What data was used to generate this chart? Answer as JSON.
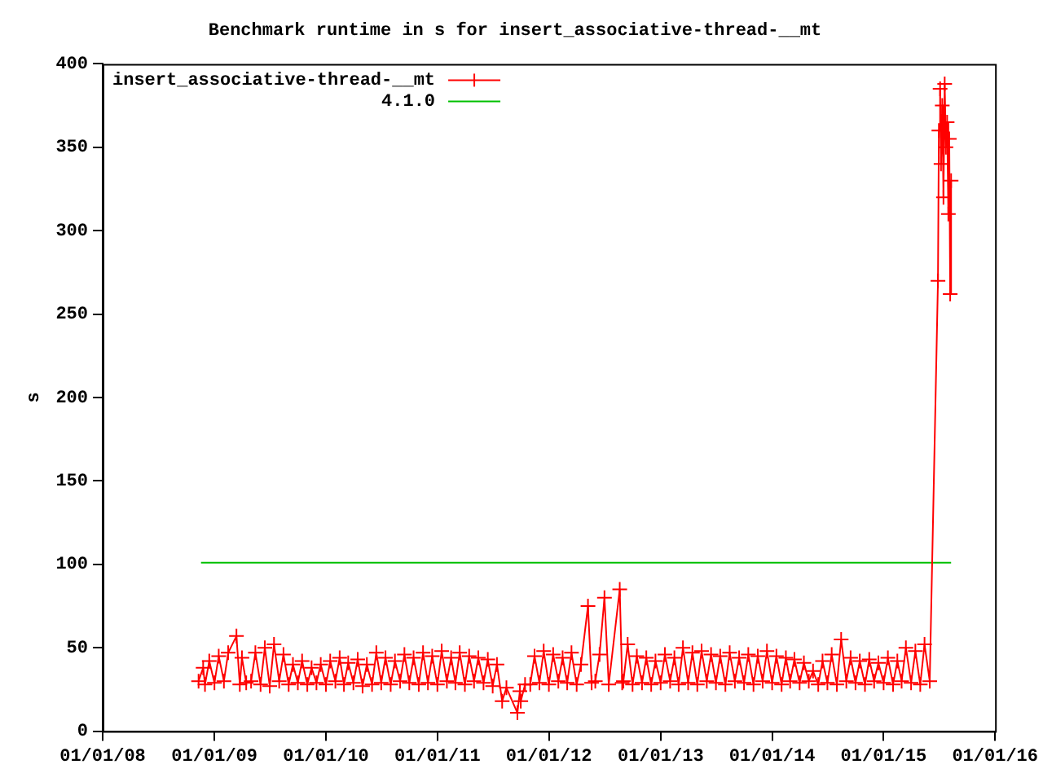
{
  "chart_data": {
    "type": "line",
    "title": "Benchmark runtime in s for insert_associative-thread-__mt",
    "ylabel": "s",
    "xlim": [
      "2008-01-01",
      "2016-01-01"
    ],
    "xticks": [
      {
        "value": "2008-01-01",
        "label": "01/01/08"
      },
      {
        "value": "2009-01-01",
        "label": "01/01/09"
      },
      {
        "value": "2010-01-01",
        "label": "01/01/10"
      },
      {
        "value": "2011-01-01",
        "label": "01/01/11"
      },
      {
        "value": "2012-01-01",
        "label": "01/01/12"
      },
      {
        "value": "2013-01-01",
        "label": "01/01/13"
      },
      {
        "value": "2014-01-01",
        "label": "01/01/14"
      },
      {
        "value": "2015-01-01",
        "label": "01/01/15"
      },
      {
        "value": "2016-01-01",
        "label": "01/01/16"
      }
    ],
    "ylim": [
      0,
      400
    ],
    "yticks": [
      0,
      50,
      100,
      150,
      200,
      250,
      300,
      350,
      400
    ],
    "grid": false,
    "legend": "top left",
    "series": [
      {
        "name": "insert_associative-thread-__mt",
        "color": "#ff0000",
        "marker": "cross",
        "line_style": "solid",
        "x": [
          "2008-11-10",
          "2008-11-25",
          "2008-12-01",
          "2008-12-15",
          "2009-01-01",
          "2009-01-15",
          "2009-02-01",
          "2009-02-15",
          "2009-03-14",
          "2009-03-25",
          "2009-04-01",
          "2009-04-15",
          "2009-05-01",
          "2009-05-15",
          "2009-06-01",
          "2009-06-15",
          "2009-07-01",
          "2009-07-15",
          "2009-08-01",
          "2009-08-15",
          "2009-09-01",
          "2009-09-15",
          "2009-10-01",
          "2009-10-15",
          "2009-11-01",
          "2009-11-15",
          "2009-12-01",
          "2009-12-15",
          "2010-01-01",
          "2010-01-15",
          "2010-02-01",
          "2010-02-15",
          "2010-03-01",
          "2010-03-15",
          "2010-04-01",
          "2010-04-15",
          "2010-05-01",
          "2010-05-15",
          "2010-06-01",
          "2010-06-15",
          "2010-07-01",
          "2010-07-15",
          "2010-08-01",
          "2010-08-15",
          "2010-09-01",
          "2010-09-15",
          "2010-10-01",
          "2010-10-15",
          "2010-11-01",
          "2010-11-15",
          "2010-12-01",
          "2010-12-15",
          "2011-01-01",
          "2011-01-15",
          "2011-02-01",
          "2011-02-15",
          "2011-03-01",
          "2011-03-15",
          "2011-04-01",
          "2011-04-15",
          "2011-05-01",
          "2011-05-15",
          "2011-06-01",
          "2011-06-15",
          "2011-07-01",
          "2011-07-15",
          "2011-08-01",
          "2011-08-15",
          "2011-09-20",
          "2011-09-28",
          "2011-10-01",
          "2011-10-15",
          "2011-11-01",
          "2011-11-15",
          "2011-12-01",
          "2011-12-15",
          "2012-01-01",
          "2012-01-15",
          "2012-02-01",
          "2012-02-15",
          "2012-03-01",
          "2012-03-15",
          "2012-04-01",
          "2012-04-15",
          "2012-05-08",
          "2012-05-20",
          "2012-06-01",
          "2012-06-15",
          "2012-07-01",
          "2012-07-15",
          "2012-08-20",
          "2012-08-28",
          "2012-09-01",
          "2012-09-15",
          "2012-10-01",
          "2012-10-15",
          "2012-11-01",
          "2012-11-15",
          "2012-12-01",
          "2012-12-15",
          "2013-01-01",
          "2013-01-15",
          "2013-02-01",
          "2013-02-15",
          "2013-03-01",
          "2013-03-15",
          "2013-04-01",
          "2013-04-15",
          "2013-05-01",
          "2013-05-15",
          "2013-06-01",
          "2013-06-15",
          "2013-07-01",
          "2013-07-15",
          "2013-08-01",
          "2013-08-15",
          "2013-09-01",
          "2013-09-15",
          "2013-10-01",
          "2013-10-15",
          "2013-11-01",
          "2013-11-15",
          "2013-12-01",
          "2013-12-15",
          "2014-01-01",
          "2014-01-15",
          "2014-02-01",
          "2014-02-15",
          "2014-03-01",
          "2014-03-15",
          "2014-04-01",
          "2014-04-15",
          "2014-05-01",
          "2014-05-15",
          "2014-06-01",
          "2014-06-15",
          "2014-07-01",
          "2014-07-15",
          "2014-08-01",
          "2014-08-15",
          "2014-09-01",
          "2014-09-15",
          "2014-10-01",
          "2014-10-15",
          "2014-11-01",
          "2014-11-15",
          "2014-12-01",
          "2014-12-15",
          "2015-01-01",
          "2015-01-15",
          "2015-02-01",
          "2015-02-15",
          "2015-03-01",
          "2015-03-15",
          "2015-04-01",
          "2015-04-15",
          "2015-05-01",
          "2015-05-15",
          "2015-06-01",
          "2015-06-28",
          "2015-07-01",
          "2015-07-05",
          "2015-07-08",
          "2015-07-12",
          "2015-07-16",
          "2015-07-20",
          "2015-07-24",
          "2015-07-28",
          "2015-08-01",
          "2015-08-04",
          "2015-08-07",
          "2015-08-10"
        ],
        "values": [
          30,
          38,
          28,
          42,
          29,
          45,
          30,
          47,
          57,
          28,
          44,
          29,
          30,
          47,
          28,
          50,
          27,
          52,
          30,
          46,
          28,
          40,
          29,
          42,
          28,
          38,
          29,
          40,
          28,
          42,
          30,
          44,
          28,
          41,
          29,
          43,
          27,
          40,
          28,
          47,
          29,
          44,
          28,
          42,
          30,
          46,
          29,
          44,
          28,
          47,
          29,
          45,
          28,
          48,
          30,
          44,
          29,
          47,
          28,
          45,
          30,
          44,
          29,
          43,
          27,
          40,
          18,
          26,
          11,
          24,
          18,
          28,
          28,
          45,
          29,
          48,
          28,
          46,
          30,
          44,
          29,
          47,
          28,
          40,
          75,
          29,
          30,
          46,
          80,
          28,
          85,
          29,
          30,
          52,
          28,
          45,
          29,
          44,
          28,
          42,
          29,
          46,
          30,
          44,
          28,
          50,
          29,
          47,
          28,
          48,
          30,
          46,
          29,
          45,
          28,
          47,
          30,
          44,
          29,
          46,
          28,
          45,
          30,
          48,
          29,
          45,
          28,
          44,
          30,
          43,
          29,
          41,
          30,
          36,
          28,
          42,
          29,
          46,
          28,
          55,
          30,
          44,
          29,
          42,
          28,
          43,
          30,
          41,
          29,
          44,
          28,
          42,
          30,
          50,
          29,
          48,
          28,
          52,
          30,
          270,
          360,
          385,
          340,
          375,
          320,
          388,
          350,
          365,
          310,
          355,
          262,
          330
        ]
      },
      {
        "name": "4.1.0",
        "color": "#00c000",
        "marker": "none",
        "line_style": "solid",
        "x": [
          "2008-11-18",
          "2015-08-10"
        ],
        "values": [
          101,
          101
        ]
      }
    ]
  }
}
